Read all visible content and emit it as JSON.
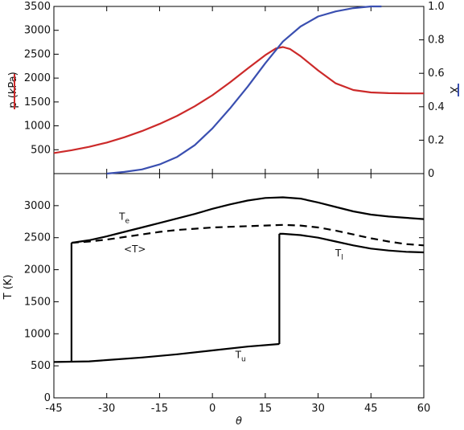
{
  "chart_data": [
    {
      "type": "line",
      "panel": "top",
      "xlim": [
        -45,
        60
      ],
      "left_axis": {
        "label": "p (kPa)",
        "color": "#cc2a2a",
        "ylim": [
          0,
          3500
        ],
        "ticks": [
          500,
          1000,
          1500,
          2000,
          2500,
          3000,
          3500
        ]
      },
      "right_axis": {
        "label": "X",
        "color": "#3a4fb0",
        "ylim": [
          0,
          1.0
        ],
        "ticks": [
          0,
          0.2,
          0.4,
          0.6,
          0.8,
          1.0
        ],
        "tick_labels": [
          "0",
          "0.2",
          "0.4",
          "0.6",
          "0.8",
          "1.0"
        ]
      },
      "series": [
        {
          "axis": "left",
          "color": "#cc2a2a",
          "x": [
            -45,
            -40,
            -35,
            -30,
            -25,
            -20,
            -15,
            -10,
            -5,
            0,
            5,
            10,
            15,
            18,
            20,
            22,
            25,
            30,
            35,
            40,
            45,
            50,
            55,
            60
          ],
          "y": [
            430,
            490,
            560,
            650,
            760,
            890,
            1040,
            1210,
            1410,
            1640,
            1910,
            2200,
            2480,
            2620,
            2650,
            2610,
            2460,
            2160,
            1890,
            1750,
            1700,
            1685,
            1680,
            1680
          ]
        },
        {
          "axis": "right",
          "color": "#3a4fb0",
          "x": [
            -30,
            -25,
            -20,
            -15,
            -10,
            -5,
            0,
            5,
            10,
            15,
            20,
            25,
            30,
            35,
            40,
            45,
            48
          ],
          "y": [
            0,
            0.01,
            0.025,
            0.055,
            0.1,
            0.17,
            0.27,
            0.39,
            0.52,
            0.66,
            0.79,
            0.88,
            0.94,
            0.97,
            0.99,
            1.0,
            1.0
          ]
        }
      ]
    },
    {
      "type": "line",
      "panel": "bottom",
      "xlabel": "θ",
      "ylabel": "T (K)",
      "xlim": [
        -45,
        60
      ],
      "ylim": [
        0,
        3500
      ],
      "x_ticks": [
        -45,
        -30,
        -15,
        0,
        15,
        30,
        45,
        60
      ],
      "y_ticks": [
        0,
        500,
        1000,
        1500,
        2000,
        2500,
        3000
      ],
      "series": [
        {
          "name": "T_e",
          "style": "solid",
          "x": [
            -40,
            -35,
            -30,
            -25,
            -20,
            -15,
            -10,
            -5,
            0,
            5,
            10,
            15,
            20,
            25,
            30,
            35,
            40,
            45,
            50,
            55,
            60
          ],
          "y": [
            2420,
            2460,
            2520,
            2590,
            2660,
            2730,
            2800,
            2870,
            2950,
            3020,
            3080,
            3120,
            3130,
            3110,
            3050,
            2980,
            2910,
            2860,
            2830,
            2810,
            2790
          ]
        },
        {
          "name": "<T>",
          "style": "dashed",
          "x": [
            -40,
            -35,
            -30,
            -25,
            -20,
            -15,
            -10,
            -5,
            0,
            5,
            10,
            15,
            20,
            25,
            30,
            35,
            40,
            45,
            50,
            55,
            60
          ],
          "y": [
            2420,
            2440,
            2470,
            2510,
            2550,
            2590,
            2620,
            2640,
            2660,
            2670,
            2680,
            2690,
            2700,
            2690,
            2660,
            2610,
            2550,
            2490,
            2440,
            2400,
            2380
          ]
        },
        {
          "name": "T_u",
          "style": "solid",
          "x": [
            -45,
            -35,
            -30,
            -20,
            -10,
            0,
            10,
            19,
            19,
            19
          ],
          "y": [
            560,
            570,
            590,
            630,
            680,
            740,
            800,
            840,
            840,
            840
          ]
        },
        {
          "name": "T_l",
          "style": "solid",
          "x": [
            19,
            20,
            25,
            30,
            35,
            40,
            45,
            50,
            55,
            60
          ],
          "y": [
            2560,
            2560,
            2540,
            2500,
            2440,
            2380,
            2330,
            2300,
            2280,
            2270
          ]
        }
      ],
      "annotations": [
        {
          "text": "T",
          "sub": "e"
        },
        {
          "text": "<T>"
        },
        {
          "text": "T",
          "sub": "l"
        },
        {
          "text": "T",
          "sub": "u"
        }
      ]
    }
  ]
}
